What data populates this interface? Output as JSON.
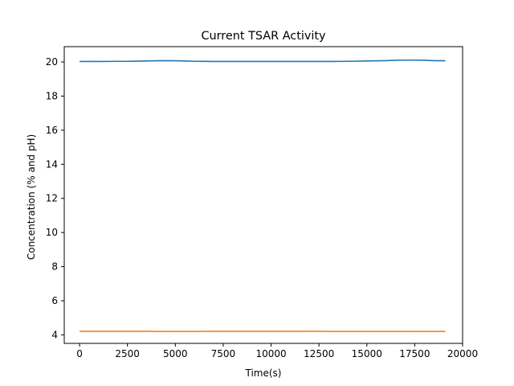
{
  "chart_data": {
    "type": "line",
    "title": "Current TSAR Activity",
    "xlabel": "Time(s)",
    "ylabel": "Concentration (% and pH)",
    "xlim": [
      -800,
      20000
    ],
    "ylim": [
      3.5,
      20.9
    ],
    "xticks": [
      0,
      2500,
      5000,
      7500,
      10000,
      12500,
      15000,
      17500,
      20000
    ],
    "yticks": [
      4,
      6,
      8,
      10,
      12,
      14,
      16,
      18,
      20
    ],
    "grid": false,
    "legend": "none",
    "x": [
      0,
      1000,
      2000,
      2500,
      3000,
      3500,
      4000,
      4500,
      5000,
      5500,
      6000,
      7000,
      8000,
      9000,
      10000,
      11000,
      12000,
      13000,
      14000,
      15000,
      16000,
      16500,
      17000,
      17500,
      18000,
      18500,
      19100
    ],
    "series": [
      {
        "color": "#1f77b4",
        "values": [
          20.03,
          20.03,
          20.04,
          20.04,
          20.05,
          20.06,
          20.07,
          20.08,
          20.07,
          20.06,
          20.04,
          20.03,
          20.03,
          20.03,
          20.03,
          20.03,
          20.03,
          20.03,
          20.04,
          20.06,
          20.08,
          20.1,
          20.11,
          20.11,
          20.1,
          20.08,
          20.07
        ]
      },
      {
        "color": "#ff7f0e",
        "values": [
          4.21,
          4.21,
          4.21,
          4.21,
          4.21,
          4.21,
          4.2,
          4.2,
          4.2,
          4.2,
          4.2,
          4.21,
          4.21,
          4.21,
          4.21,
          4.21,
          4.21,
          4.2,
          4.2,
          4.2,
          4.2,
          4.2,
          4.2,
          4.2,
          4.2,
          4.2,
          4.2
        ]
      }
    ]
  }
}
